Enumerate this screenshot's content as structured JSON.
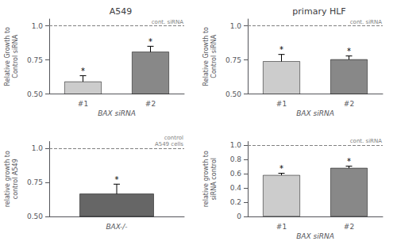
{
  "chart_data": [
    {
      "type": "bar",
      "title": "A549",
      "categories": [
        "#1",
        "#2"
      ],
      "values": [
        0.591,
        0.81
      ],
      "errors": [
        0.043,
        0.04
      ],
      "colors": [
        "#cccccc",
        "#888888"
      ],
      "ylabel": "Relative Growth to\nControl siRNA",
      "xlabel": "BAX siRNA",
      "ylim": [
        0.5,
        1.05
      ],
      "yticks": [
        {
          "value": 0.5,
          "label": "0.50"
        },
        0.75,
        {
          "value": 1.0,
          "label": "1.0"
        }
      ],
      "grid": false,
      "stars": [
        "*",
        "*"
      ],
      "reference_line": {
        "y": 1.0,
        "label": "cont. siRNA",
        "line_style": "dashed"
      }
    },
    {
      "type": "bar",
      "title": "primary HLF",
      "categories": [
        "#1",
        "#2"
      ],
      "values": [
        0.74,
        0.754
      ],
      "errors": [
        0.05,
        0.025
      ],
      "colors": [
        "#cccccc",
        "#888888"
      ],
      "ylabel": "Relative Growth to\nControl siRNA",
      "xlabel": "BAX siRNA",
      "ylim": [
        0.5,
        1.05
      ],
      "yticks": [
        {
          "value": 0.5,
          "label": "0.50"
        },
        0.75,
        {
          "value": 1.0,
          "label": "1.0"
        }
      ],
      "grid": false,
      "stars": [
        "*",
        "*"
      ],
      "reference_line": {
        "y": 1.0,
        "label": "cont. siRNA",
        "line_style": "dashed"
      }
    },
    {
      "type": "bar",
      "categories": [
        "BAX-/-"
      ],
      "values": [
        0.667
      ],
      "errors": [
        0.07
      ],
      "colors": [
        "#666666"
      ],
      "ylabel": "relative growth to\ncontrol A549",
      "ylim": [
        0.5,
        1.05
      ],
      "yticks": [
        {
          "value": 0.5,
          "label": "0.50"
        },
        0.75,
        {
          "value": 1.0,
          "label": "1.0"
        }
      ],
      "grid": false,
      "stars": [
        "*"
      ],
      "reference_line": {
        "y": 1.0,
        "label": "control\nA549 cells",
        "line_style": "dashed"
      }
    },
    {
      "type": "bar",
      "categories": [
        "#1",
        "#2"
      ],
      "values": [
        0.58,
        0.68
      ],
      "errors": [
        0.025,
        0.025
      ],
      "colors": [
        "#cccccc",
        "#888888"
      ],
      "ylabel": "relative growth to\nsiRNA control",
      "xlabel": "BAX siRNA",
      "ylim": [
        0.0,
        1.05
      ],
      "yticks": [
        0,
        0.2,
        0.4,
        0.6,
        0.8,
        {
          "value": 1.0,
          "label": "1.0"
        }
      ],
      "grid": false,
      "stars": [
        "*",
        "*"
      ],
      "reference_line": {
        "y": 1.0,
        "label": "cont. siRNA",
        "line_style": "dashed"
      }
    }
  ]
}
